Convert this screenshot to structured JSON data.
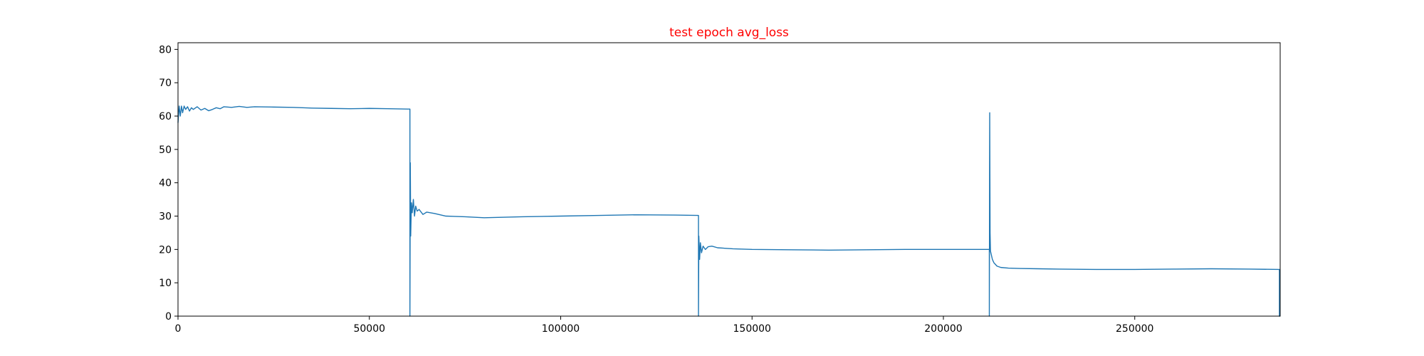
{
  "chart_data": {
    "type": "line",
    "title": "test epoch avg_loss",
    "title_color": "#ff0000",
    "xlabel": "",
    "ylabel": "",
    "xlim": [
      0,
      288000
    ],
    "ylim": [
      0,
      82
    ],
    "xticks": [
      0,
      50000,
      100000,
      150000,
      200000,
      250000
    ],
    "yticks": [
      0,
      10,
      20,
      30,
      40,
      50,
      60,
      70,
      80
    ],
    "grid": false,
    "line_color": "#1f77b4",
    "series": [
      {
        "x": [
          0,
          300,
          600,
          900,
          1200,
          1600,
          2000,
          2500,
          3000,
          3500,
          4000,
          5000,
          6000,
          7000,
          8000,
          9000,
          10000,
          11000,
          12000,
          14000,
          16000,
          18000,
          20000,
          25000,
          30000,
          35000,
          40000,
          45000,
          50000,
          55000,
          60000,
          60600,
          60600,
          60700,
          60800,
          61000,
          61200,
          61500,
          61800,
          62100,
          62500,
          63000,
          64000,
          65000,
          67000,
          70000,
          75000,
          80000,
          90000,
          100000,
          110000,
          120000,
          130000,
          136000,
          136000,
          136100,
          136300,
          136500,
          136800,
          137200,
          137800,
          138500,
          139500,
          141000,
          145000,
          150000,
          160000,
          170000,
          180000,
          190000,
          200000,
          212000,
          212000,
          212100,
          212200,
          212300,
          212500,
          212800,
          213200,
          214000,
          215000,
          217000,
          220000,
          225000,
          230000,
          240000,
          250000,
          260000,
          270000,
          280000,
          287800,
          287800,
          288000
        ],
        "y": [
          58,
          63,
          60,
          63,
          61,
          63,
          62,
          62.8,
          61.5,
          62.5,
          62,
          62.8,
          61.8,
          62.3,
          61.6,
          62,
          62.5,
          62.2,
          62.8,
          62.6,
          62.9,
          62.6,
          62.8,
          62.7,
          62.6,
          62.4,
          62.3,
          62.2,
          62.3,
          62.2,
          62.1,
          62.1,
          0,
          46,
          24,
          34,
          31,
          35,
          30,
          33,
          31.5,
          32,
          30.5,
          31.2,
          30.8,
          30,
          29.8,
          29.5,
          29.8,
          30,
          30.2,
          30.4,
          30.3,
          30.2,
          0,
          24,
          17,
          22,
          19,
          21,
          20,
          20.8,
          21,
          20.5,
          20.2,
          20,
          19.9,
          19.8,
          19.9,
          20,
          20,
          20,
          0,
          61,
          25,
          19.5,
          18.5,
          17,
          16,
          15,
          14.6,
          14.4,
          14.3,
          14.2,
          14.1,
          14,
          14,
          14.1,
          14.2,
          14.1,
          14,
          0,
          0
        ]
      }
    ]
  }
}
